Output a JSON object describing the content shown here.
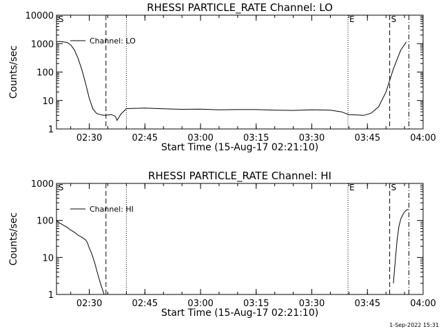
{
  "chart_data": [
    {
      "type": "line",
      "title": "RHESSI PARTICLE_RATE Channel: LO",
      "xlabel": "Start Time (15-Aug-17 02:21:10)",
      "ylabel": "Counts/sec",
      "yscale": "log",
      "ylim": [
        1,
        10000
      ],
      "xlim": [
        "02:21:10",
        "04:00:00"
      ],
      "xticks": [
        "02:30",
        "02:45",
        "03:00",
        "03:15",
        "03:30",
        "03:45",
        "04:00"
      ],
      "yticks": [
        "1",
        "10",
        "100",
        "1000",
        "10000"
      ],
      "legend": "top-left",
      "series": [
        {
          "name": "Channel: LO",
          "x": [
            "02:21:10",
            "02:22:00",
            "02:24:00",
            "02:25:00",
            "02:26:00",
            "02:27:00",
            "02:28:00",
            "02:29:00",
            "02:30:00",
            "02:31:00",
            "02:32:00",
            "02:33:00",
            "02:34:00",
            "02:36:00",
            "02:37:00",
            "02:37:30",
            "02:38:30",
            "02:40:00",
            "02:45:00",
            "02:50:00",
            "02:55:00",
            "03:00:00",
            "03:05:00",
            "03:10:00",
            "03:15:00",
            "03:20:00",
            "03:25:00",
            "03:30:00",
            "03:35:00",
            "03:38:00",
            "03:40:00",
            "03:44:00",
            "03:46:00",
            "03:48:00",
            "03:50:00",
            "03:52:00",
            "03:54:00",
            "03:55:30"
          ],
          "values": [
            1150,
            1200,
            1100,
            900,
            600,
            300,
            120,
            40,
            12,
            5,
            3.5,
            3.2,
            3.0,
            3.2,
            2.8,
            2.0,
            3.3,
            5.2,
            5.4,
            5.1,
            4.9,
            5.0,
            4.7,
            4.8,
            4.8,
            4.6,
            4.5,
            4.7,
            4.6,
            4.0,
            3.2,
            3.0,
            3.6,
            6,
            20,
            130,
            600,
            1150
          ]
        }
      ],
      "markers": [
        {
          "label": "S",
          "time": "02:21:40",
          "style": "none"
        },
        {
          "label": "",
          "time": "02:34:30",
          "style": "dashed"
        },
        {
          "label": "",
          "time": "02:40:00",
          "style": "dotted"
        },
        {
          "label": "E",
          "time": "03:39:45",
          "style": "dotted"
        },
        {
          "label": "S",
          "time": "03:51:00",
          "style": "dashed"
        },
        {
          "label": "",
          "time": "03:56:10",
          "style": "dashdot"
        }
      ]
    },
    {
      "type": "line",
      "title": "RHESSI PARTICLE_RATE Channel: HI",
      "xlabel": "Start Time (15-Aug-17 02:21:10)",
      "ylabel": "Counts/sec",
      "yscale": "log",
      "ylim": [
        1,
        1000
      ],
      "xlim": [
        "02:21:10",
        "04:00:00"
      ],
      "xticks": [
        "02:30",
        "02:45",
        "03:00",
        "03:15",
        "03:30",
        "03:45",
        "04:00"
      ],
      "yticks": [
        "1",
        "10",
        "100",
        "1000"
      ],
      "legend": "top-left",
      "series": [
        {
          "name": "Channel: HI",
          "x": [
            "02:21:10",
            "02:22:00",
            "02:23:00",
            "02:24:00",
            "02:25:00",
            "02:26:00",
            "02:27:00",
            "02:28:00",
            "02:29:00",
            "02:29:30",
            "02:30:00",
            "02:30:30",
            "02:31:00",
            "02:31:30",
            "02:32:00",
            "02:32:30",
            "02:33:00",
            "02:33:45",
            "02:34:00"
          ],
          "values": [
            100,
            85,
            75,
            65,
            55,
            48,
            40,
            35,
            30,
            25,
            18,
            14,
            10,
            7,
            4.5,
            3,
            2,
            1.2,
            1
          ]
        },
        {
          "name": "",
          "x": [
            "03:52:00",
            "03:52:30",
            "03:53:00",
            "03:53:30",
            "03:54:00",
            "03:54:30",
            "03:55:00",
            "03:55:30",
            "03:56:00"
          ],
          "values": [
            2,
            8,
            30,
            70,
            110,
            140,
            170,
            190,
            200
          ]
        }
      ],
      "markers": [
        {
          "label": "S",
          "time": "02:21:40",
          "style": "none"
        },
        {
          "label": "",
          "time": "02:34:30",
          "style": "dashed"
        },
        {
          "label": "",
          "time": "02:40:00",
          "style": "dotted"
        },
        {
          "label": "E",
          "time": "03:39:45",
          "style": "dotted"
        },
        {
          "label": "S",
          "time": "03:51:00",
          "style": "dashed"
        },
        {
          "label": "",
          "time": "03:56:10",
          "style": "dashdot"
        }
      ]
    }
  ],
  "footer": {
    "timestamp": "1-Sep-2022 15:31"
  }
}
